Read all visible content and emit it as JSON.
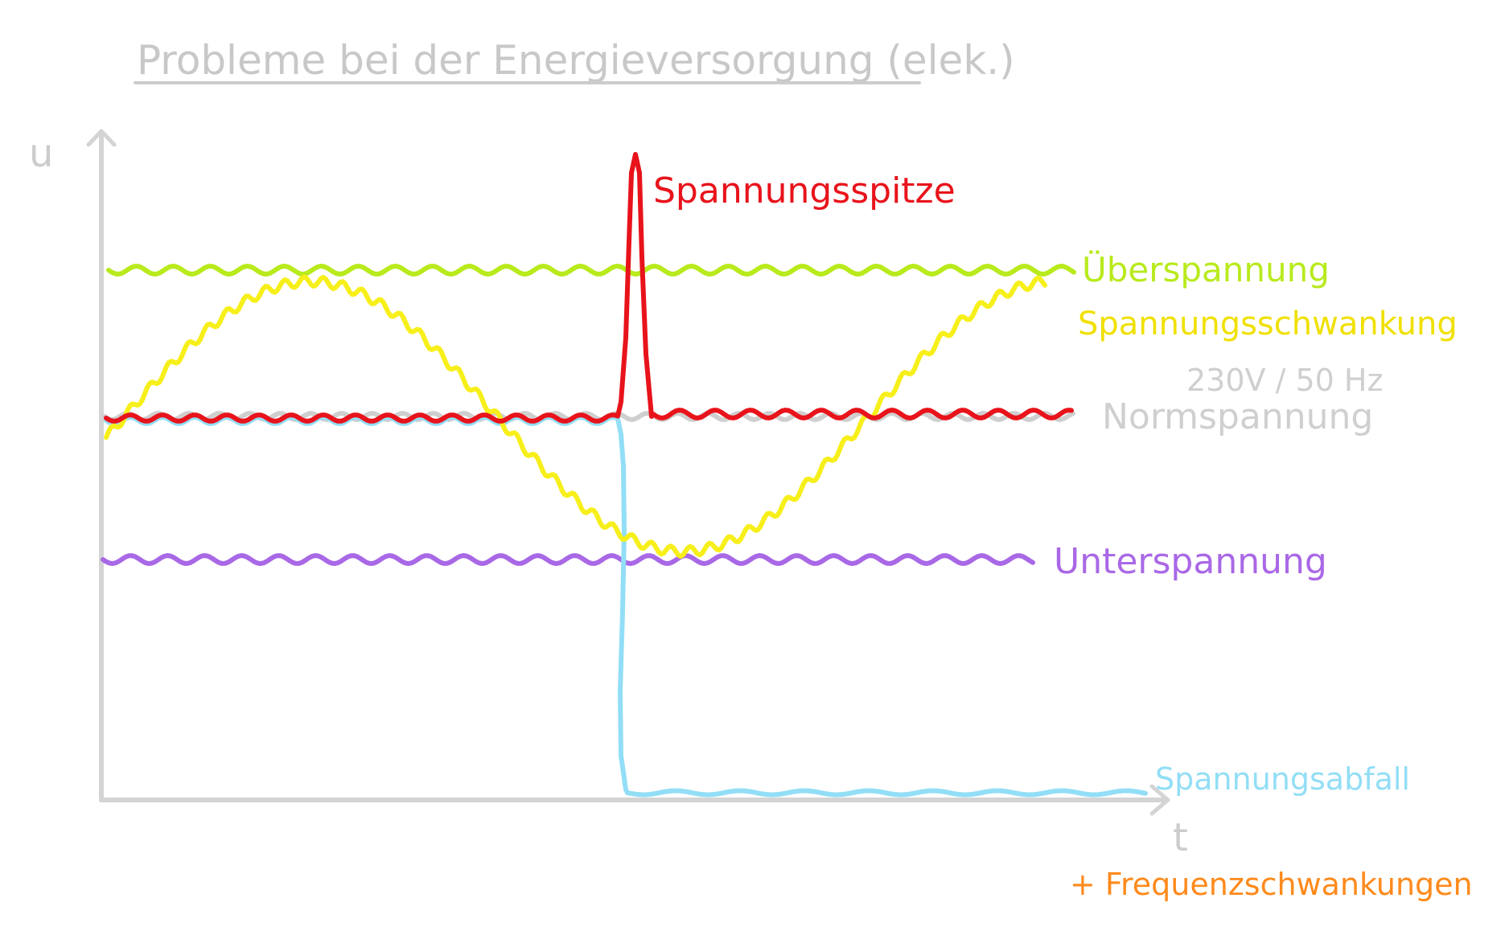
{
  "title": "Probleme bei der Energieversorgung (elek.)",
  "axes": {
    "y_label": "u",
    "x_label": "t"
  },
  "labels": {
    "spike": "Spannungsspitze",
    "over": "Überspannung",
    "fluct": "Spannungsschwankung",
    "rating": "230V / 50 Hz",
    "norm": "Normspannung",
    "under": "Unterspannung",
    "drop": "Spannungsabfall",
    "freq": "+ Frequenzschwankungen"
  },
  "colors": {
    "title": "#c8c8c8",
    "axis": "#d4d4d4",
    "norm": "#cfcfcf",
    "over": "#b8ea1c",
    "fluct": "#f7ef1a",
    "spike": "#e8131b",
    "under": "#a968e6",
    "drop": "#92def6",
    "freq": "#ff8a1c"
  }
}
